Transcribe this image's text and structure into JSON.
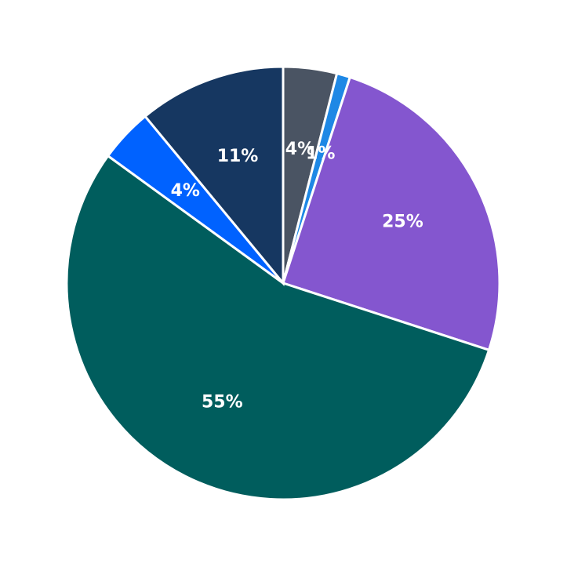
{
  "chart_data": {
    "type": "pie",
    "values": [
      4,
      1,
      25,
      55,
      4,
      11
    ],
    "value_labels": [
      "4%",
      "1%",
      "25%",
      "55%",
      "4%",
      "11%"
    ],
    "colors": [
      "#4a5463",
      "#1e88e5",
      "#8456cf",
      "#005d5d",
      "#0062ff",
      "#163761"
    ]
  }
}
